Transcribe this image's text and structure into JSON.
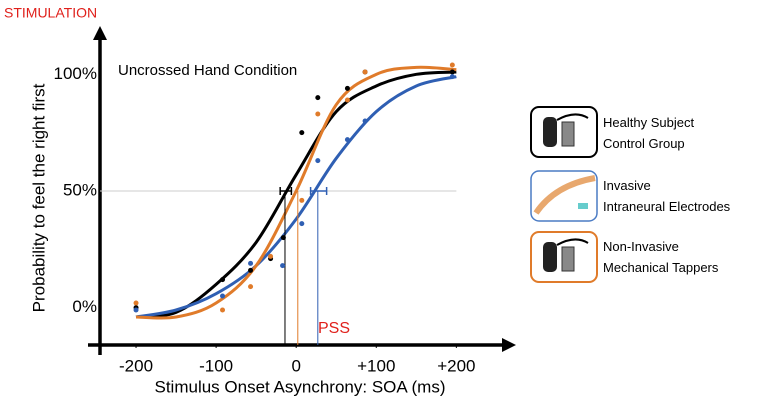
{
  "chart_data": {
    "type": "scatter",
    "title": "STIMULATION",
    "annotation": "Uncrossed Hand Condition",
    "pss_label": "PSS",
    "x_label": "Stimulus Onset Asynchrony:  SOA (ms)",
    "y_label": "Probability to feel the right first",
    "xlim": [
      -245,
      267
    ],
    "ylim": [
      -16,
      119
    ],
    "xticks": [
      -200,
      -100,
      0,
      {
        "value": 100,
        "label": "+100"
      },
      {
        "value": 200,
        "label": "+200"
      }
    ],
    "yticks": [
      {
        "value": 0,
        "label": "0%"
      },
      {
        "value": 50,
        "label": "50%"
      },
      {
        "value": 100,
        "label": "100%"
      }
    ],
    "reference_y": 50,
    "fit_x": [
      -200,
      -150,
      -100,
      -50,
      0,
      50,
      100,
      150,
      200
    ],
    "series": [
      {
        "name": "Healthy Subject\nControl Group",
        "color": "#000000",
        "x": [
          -200,
          -92,
          -57,
          -32,
          -16,
          7,
          27,
          64,
          86,
          195
        ],
        "values": [
          0,
          12,
          16,
          21,
          30,
          75,
          90,
          94,
          101,
          101
        ],
        "fit": [
          -4,
          -2,
          10,
          28,
          57,
          84,
          95,
          100,
          101
        ],
        "pss": -14,
        "pss_ci": [
          -20,
          -6
        ]
      },
      {
        "name": "Invasive\n   Intraneural Electrodes",
        "color": "#2f5fb3",
        "x": [
          -200,
          -92,
          -57,
          -17,
          7,
          27,
          64,
          86,
          195
        ],
        "values": [
          -1,
          5,
          19,
          18,
          36,
          63,
          72,
          80,
          99
        ],
        "fit": [
          -4,
          -1,
          6,
          18,
          38,
          64,
          84,
          95,
          99
        ],
        "pss": 27,
        "pss_ci": [
          18,
          38
        ]
      },
      {
        "name": "Non-Invasive\nMechanical Tappers",
        "color": "#e07b2a",
        "x": [
          -200,
          -92,
          -57,
          -32,
          7,
          27,
          64,
          86,
          195
        ],
        "values": [
          2,
          -1,
          9,
          22,
          46,
          83,
          89,
          101,
          104
        ],
        "fit": [
          -4,
          -4,
          2,
          18,
          50,
          87,
          100,
          103,
          102
        ],
        "pss": 2
      }
    ]
  }
}
